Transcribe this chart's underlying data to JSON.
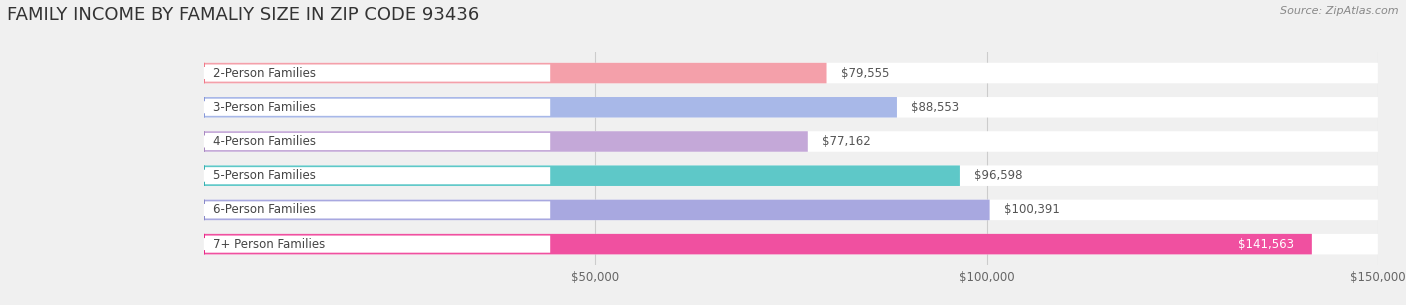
{
  "title": "FAMILY INCOME BY FAMALIY SIZE IN ZIP CODE 93436",
  "source": "Source: ZipAtlas.com",
  "categories": [
    "2-Person Families",
    "3-Person Families",
    "4-Person Families",
    "5-Person Families",
    "6-Person Families",
    "7+ Person Families"
  ],
  "values": [
    79555,
    88553,
    77162,
    96598,
    100391,
    141563
  ],
  "bar_colors": [
    "#f4a0aa",
    "#a8b8e8",
    "#c4a8d8",
    "#5ec8c8",
    "#a8a8e0",
    "#f050a0"
  ],
  "circle_colors": [
    "#f07888",
    "#8898d8",
    "#a888c0",
    "#38b0b0",
    "#8888c8",
    "#e82888"
  ],
  "value_labels": [
    "$79,555",
    "$88,553",
    "$77,162",
    "$96,598",
    "$100,391",
    "$141,563"
  ],
  "xlim": [
    0,
    150000
  ],
  "xticks": [
    0,
    50000,
    100000,
    150000
  ],
  "xticklabels": [
    "",
    "$50,000",
    "$100,000",
    "$150,000"
  ],
  "background_color": "#f0f0f0",
  "title_fontsize": 13,
  "label_fontsize": 8.5,
  "value_fontsize": 8.5,
  "source_fontsize": 8
}
